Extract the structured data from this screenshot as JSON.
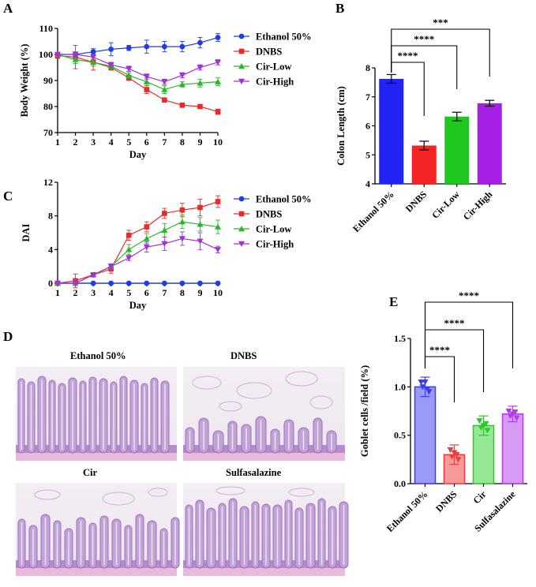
{
  "panels": {
    "A": "A",
    "B": "B",
    "C": "C",
    "D": "D",
    "E": "E"
  },
  "chart_data": [
    {
      "id": "A",
      "type": "line",
      "xlabel": "Day",
      "ylabel": "Body Weight (%)",
      "xlim": [
        1,
        10
      ],
      "ylim": [
        70,
        110
      ],
      "x_ticks": [
        1,
        2,
        3,
        4,
        5,
        6,
        7,
        8,
        9,
        10
      ],
      "y_ticks": [
        70,
        80,
        90,
        100,
        110
      ],
      "legend_position": "right",
      "series": [
        {
          "name": "Ethanol 50%",
          "color": "#1f3de6",
          "marker": "circle",
          "x": [
            1,
            2,
            3,
            4,
            5,
            6,
            7,
            8,
            9,
            10
          ],
          "values": [
            100,
            100,
            101,
            102,
            102.5,
            103,
            103,
            103,
            104.5,
            106.5
          ],
          "errors": [
            0.5,
            0.8,
            1.2,
            2.5,
            1.0,
            2.5,
            2.0,
            2.0,
            2.0,
            1.5
          ]
        },
        {
          "name": "DNBS",
          "color": "#e82a2a",
          "marker": "square",
          "x": [
            1,
            2,
            3,
            4,
            5,
            6,
            7,
            8,
            9,
            10
          ],
          "values": [
            99.5,
            99,
            97,
            95,
            91,
            86.5,
            82.5,
            80.5,
            80,
            78
          ],
          "errors": [
            1,
            4.5,
            3,
            1,
            1,
            1.5,
            0.5,
            0.5,
            0.5,
            1
          ]
        },
        {
          "name": "Cir-Low",
          "color": "#2ab82a",
          "marker": "triangle-up",
          "x": [
            1,
            2,
            3,
            4,
            5,
            6,
            7,
            8,
            9,
            10
          ],
          "values": [
            100,
            98,
            97,
            95.5,
            92,
            89.5,
            86.5,
            88.5,
            89,
            89.5
          ],
          "errors": [
            0.5,
            1.5,
            1.5,
            1,
            1,
            1.5,
            1.5,
            1,
            1.5,
            1.5
          ]
        },
        {
          "name": "Cir-High",
          "color": "#a030d8",
          "marker": "triangle-down",
          "x": [
            1,
            2,
            3,
            4,
            5,
            6,
            7,
            8,
            9,
            10
          ],
          "values": [
            100,
            100,
            99,
            96,
            94.5,
            91.5,
            89.5,
            92,
            95,
            97
          ],
          "errors": [
            0.5,
            1,
            1,
            1,
            1,
            1,
            1,
            1,
            1,
            1
          ]
        }
      ]
    },
    {
      "id": "B",
      "type": "bar",
      "ylabel": "Colon Length (cm)",
      "ylim": [
        4,
        8
      ],
      "y_ticks": [
        4,
        5,
        6,
        7,
        8
      ],
      "categories": [
        "Ethanol 50%",
        "DNBS",
        "Cir-Low",
        "Cir-High"
      ],
      "values": [
        7.62,
        5.32,
        6.32,
        6.78
      ],
      "errors": [
        0.15,
        0.15,
        0.15,
        0.1
      ],
      "colors": [
        "#2323f5",
        "#f52323",
        "#1fc81f",
        "#a81fe6"
      ],
      "significance": [
        {
          "from": "Ethanol 50%",
          "to": "DNBS",
          "label": "****"
        },
        {
          "from": "Ethanol 50%",
          "to": "Cir-Low",
          "label": "****"
        },
        {
          "from": "Ethanol 50%",
          "to": "Cir-High",
          "label": "***"
        }
      ]
    },
    {
      "id": "C",
      "type": "line",
      "xlabel": "Day",
      "ylabel": "DAI",
      "xlim": [
        1,
        10
      ],
      "ylim": [
        0,
        12
      ],
      "x_ticks": [
        1,
        2,
        3,
        4,
        5,
        6,
        7,
        8,
        9,
        10
      ],
      "y_ticks": [
        0,
        4,
        8,
        12
      ],
      "legend_position": "right",
      "series": [
        {
          "name": "Ethanol 50%",
          "color": "#1f3de6",
          "marker": "circle",
          "x": [
            1,
            2,
            3,
            4,
            5,
            6,
            7,
            8,
            9,
            10
          ],
          "values": [
            0,
            0,
            0,
            0,
            0,
            0,
            0,
            0,
            0,
            0
          ],
          "errors": [
            0,
            0,
            0,
            0,
            0,
            0,
            0,
            0,
            0,
            0
          ]
        },
        {
          "name": "DNBS",
          "color": "#e82a2a",
          "marker": "square",
          "x": [
            1,
            2,
            3,
            4,
            5,
            6,
            7,
            8,
            9,
            10
          ],
          "values": [
            0,
            0.3,
            1,
            1.7,
            5.7,
            6.7,
            8.3,
            8.7,
            9.0,
            9.7
          ],
          "errors": [
            0,
            0.8,
            0.2,
            0.5,
            0.6,
            0.6,
            0.6,
            0.8,
            1.0,
            0.7
          ]
        },
        {
          "name": "Cir-Low",
          "color": "#2ab82a",
          "marker": "triangle-up",
          "x": [
            1,
            2,
            3,
            4,
            5,
            6,
            7,
            8,
            9,
            10
          ],
          "values": [
            0,
            0,
            1,
            2,
            4,
            5.3,
            6.3,
            7.3,
            7.0,
            6.7
          ],
          "errors": [
            0,
            0,
            0.2,
            0.3,
            0.6,
            0.6,
            0.8,
            0.8,
            0.8,
            0.8
          ]
        },
        {
          "name": "Cir-High",
          "color": "#a030d8",
          "marker": "triangle-down",
          "x": [
            1,
            2,
            3,
            4,
            5,
            6,
            7,
            8,
            9,
            10
          ],
          "values": [
            0,
            0,
            1,
            2,
            3,
            4.3,
            4.7,
            5.3,
            5.0,
            4.0
          ],
          "errors": [
            0,
            0,
            0.2,
            0.3,
            0.3,
            0.6,
            0.8,
            0.8,
            1.0,
            0.4
          ]
        }
      ]
    },
    {
      "id": "E",
      "type": "bar",
      "ylabel": "Goblet cells /field (%)",
      "ylim": [
        0,
        1.5
      ],
      "y_ticks": [
        0.0,
        0.5,
        1.0,
        1.5
      ],
      "y_tick_labels": [
        "0.0",
        "0.5",
        "1.0",
        "1.5"
      ],
      "categories": [
        "Ethanol 50%",
        "DNBS",
        "Cir",
        "Sulfasalazine"
      ],
      "values": [
        1.0,
        0.3,
        0.6,
        0.72
      ],
      "errors": [
        0.1,
        0.1,
        0.1,
        0.08
      ],
      "colors": [
        "#3c3cf0",
        "#f03c3c",
        "#2cc82c",
        "#b03ce6"
      ],
      "fill_colors": [
        "#9a9af8",
        "#f89a9a",
        "#94e894",
        "#d89af5"
      ],
      "points": [
        [
          1.05,
          0.95,
          1.0,
          0.98,
          1.05
        ],
        [
          0.35,
          0.25,
          0.28,
          0.3,
          0.32
        ],
        [
          0.65,
          0.55,
          0.58,
          0.62,
          0.6
        ],
        [
          0.75,
          0.68,
          0.7,
          0.74,
          0.72
        ]
      ],
      "significance": [
        {
          "from": "Ethanol 50%",
          "to": "DNBS",
          "label": "****"
        },
        {
          "from": "Ethanol 50%",
          "to": "Cir",
          "label": "****"
        },
        {
          "from": "Ethanol 50%",
          "to": "Sulfasalazine",
          "label": "****"
        }
      ]
    }
  ],
  "micrographs": {
    "labels": [
      "Ethanol 50%",
      "DNBS",
      "Cir",
      "Sulfasalazine"
    ]
  }
}
